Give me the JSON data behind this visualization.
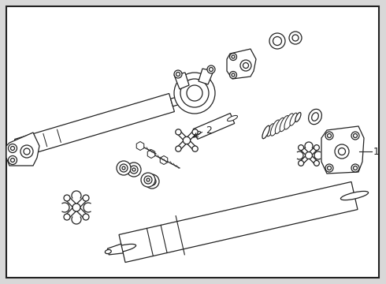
{
  "bg_color": "#d8d8d8",
  "box_bg": "#ffffff",
  "line_color": "#222222",
  "label_1": "1",
  "label_2": "2",
  "fig_width": 4.9,
  "fig_height": 3.6,
  "dpi": 100
}
